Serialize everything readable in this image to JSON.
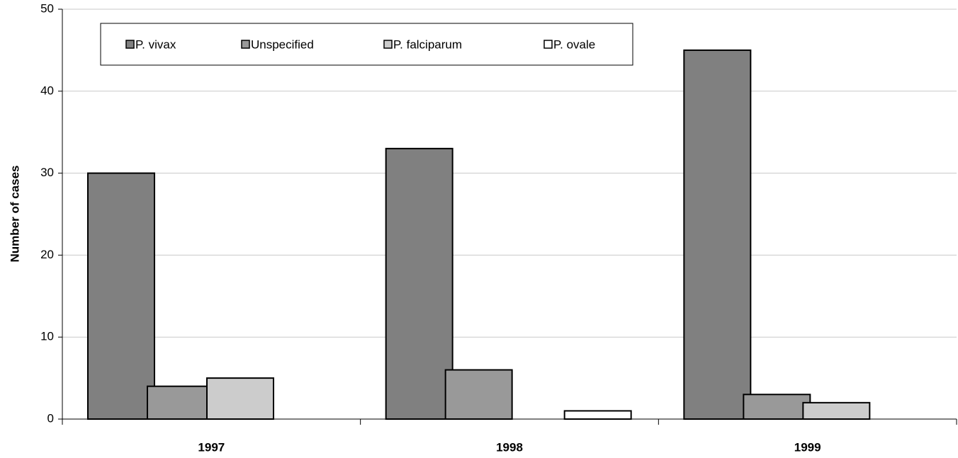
{
  "chart_data": {
    "type": "bar",
    "y_label": "Number of cases",
    "categories": [
      "1997",
      "1998",
      "1999"
    ],
    "series": [
      {
        "name": "P. vivax",
        "color": "#808080",
        "values": [
          30,
          33,
          45
        ]
      },
      {
        "name": "Unspecified",
        "color": "#999999",
        "values": [
          4,
          6,
          3
        ]
      },
      {
        "name": "P. falciparum",
        "color": "#cccccc",
        "values": [
          5,
          0,
          2
        ]
      },
      {
        "name": "P. ovale",
        "color": "#ffffff",
        "values": [
          0,
          1,
          0
        ]
      }
    ],
    "ylim": [
      0,
      50
    ],
    "yticks": [
      0,
      10,
      20,
      30,
      40,
      50
    ],
    "grid": true,
    "legend": "top"
  }
}
